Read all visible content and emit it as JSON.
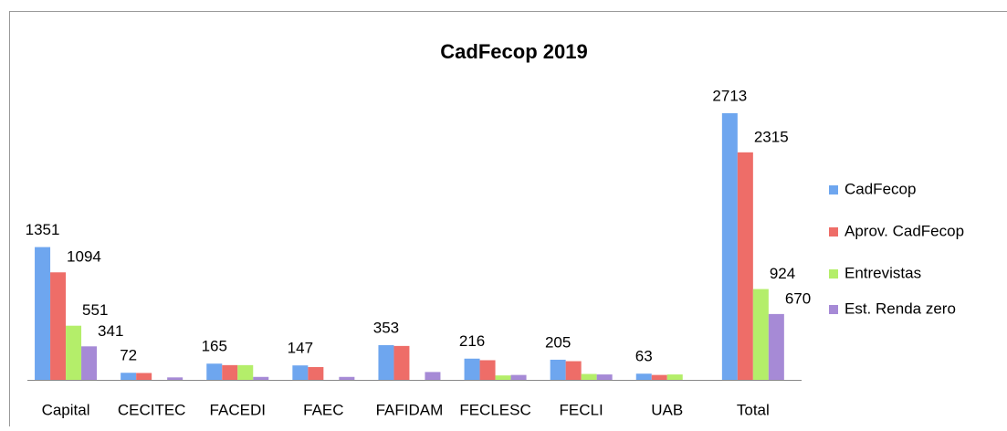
{
  "chart_data": {
    "type": "bar",
    "title": "CadFecop 2019",
    "categories": [
      "Capital",
      "CECITEC",
      "FACEDI",
      "FAEC",
      "FAFIDAM",
      "FECLESC",
      "FECLI",
      "UAB",
      "Total"
    ],
    "series": [
      {
        "name": "CadFecop",
        "color": "#6ea6ef",
        "values": [
          1351,
          72,
          165,
          147,
          353,
          216,
          205,
          63,
          2713
        ],
        "value_labels": [
          "1351",
          "72",
          "165",
          "147",
          "353",
          "216",
          "205",
          "63",
          "2713"
        ]
      },
      {
        "name": "Aprov. CadFecop",
        "color": "#ee6d68",
        "values": [
          1094,
          70,
          150,
          130,
          345,
          200,
          190,
          50,
          2315
        ],
        "value_labels": [
          "1094",
          null,
          null,
          null,
          null,
          null,
          null,
          null,
          "2315"
        ]
      },
      {
        "name": "Entrevistas",
        "color": "#b4ee6a",
        "values": [
          551,
          0,
          150,
          0,
          0,
          45,
          60,
          55,
          924
        ],
        "value_labels": [
          "551",
          null,
          null,
          null,
          null,
          null,
          null,
          null,
          "924"
        ]
      },
      {
        "name": "Est. Renda zero",
        "color": "#a68ad6",
        "values": [
          341,
          25,
          30,
          30,
          80,
          50,
          55,
          0,
          670
        ],
        "value_labels": [
          "341",
          null,
          null,
          null,
          null,
          null,
          null,
          null,
          "670"
        ]
      }
    ],
    "legend": "right"
  }
}
